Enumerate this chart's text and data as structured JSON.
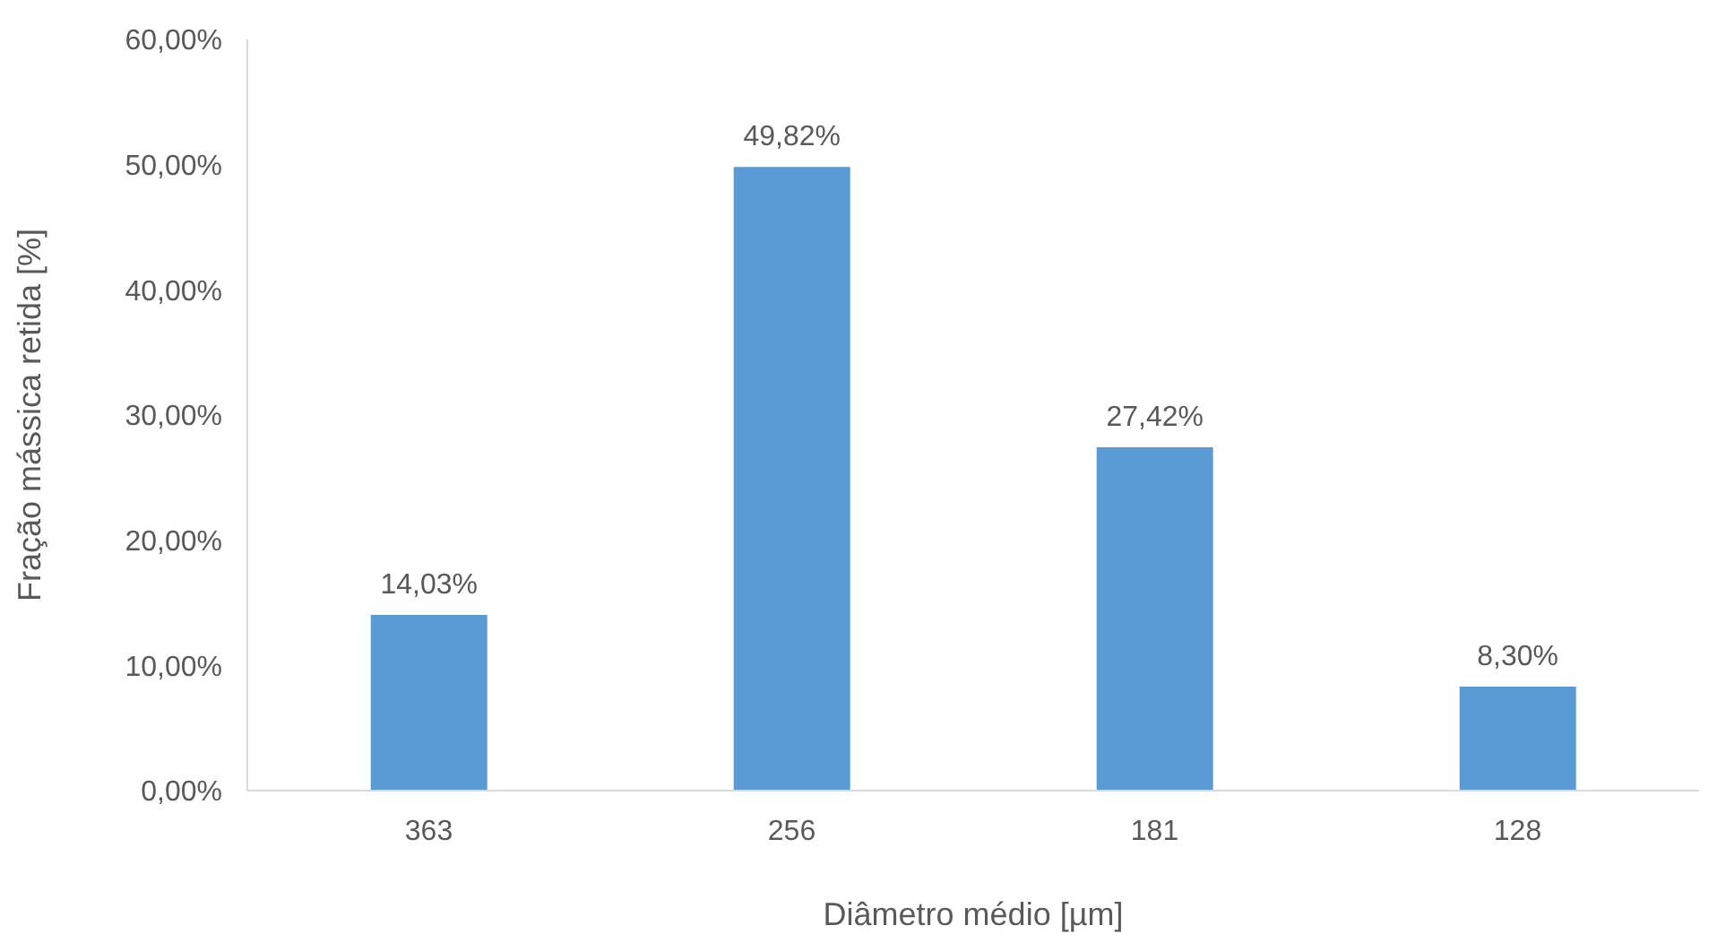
{
  "chart_data": {
    "type": "bar",
    "xlabel": "Diâmetro médio [µm]",
    "ylabel": "Fração mássica retida [%]",
    "categories": [
      "363",
      "256",
      "181",
      "128"
    ],
    "values": [
      14.03,
      49.82,
      27.42,
      8.3
    ],
    "value_labels": [
      "14,03%",
      "49,82%",
      "27,42%",
      "8,30%"
    ],
    "color": "#5b9bd5",
    "ylim": [
      0,
      60
    ],
    "yticks": [
      {
        "value": 0,
        "label": "0,00%"
      },
      {
        "value": 10,
        "label": "10,00%"
      },
      {
        "value": 20,
        "label": "20,00%"
      },
      {
        "value": 30,
        "label": "30,00%"
      },
      {
        "value": 40,
        "label": "40,00%"
      },
      {
        "value": 50,
        "label": "50,00%"
      },
      {
        "value": 60,
        "label": "60,00%"
      }
    ],
    "grid": false,
    "legend": false
  }
}
